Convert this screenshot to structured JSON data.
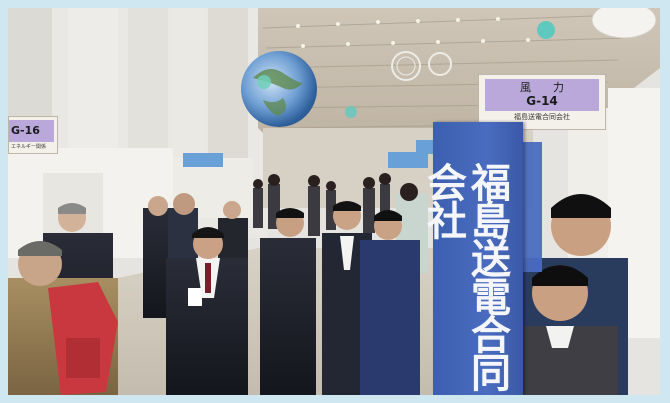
{
  "signs": {
    "g14": {
      "name": "風力",
      "code": "G-14",
      "company": "福島送電合同会社"
    },
    "g16": {
      "code": "G-16",
      "company": "エネルギー関係"
    }
  },
  "banner": {
    "text": "福島送電合同会社"
  },
  "colors": {
    "border": "#cfe7f1",
    "sign_band": "#b9a8d9",
    "banner_blue": "#4a6cc0"
  }
}
